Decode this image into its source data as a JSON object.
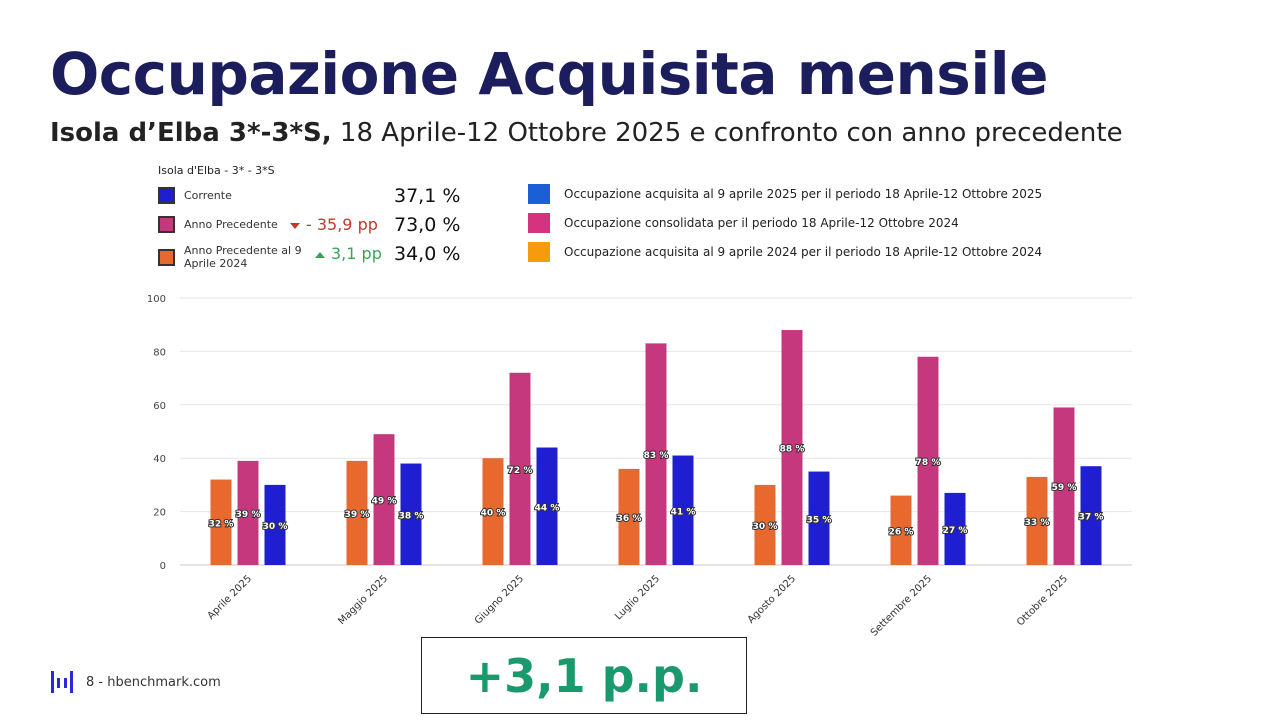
{
  "title": "Occupazione Acquisita mensile",
  "subtitle": {
    "bold": "Isola d’Elba 3*-3*S,",
    "rest": " 18 Aprile-12 Ottobre 2025 e confronto con anno precedente"
  },
  "kpi": {
    "caption": "Isola d'Elba - 3* - 3*S",
    "rows": [
      {
        "label": "Corrente",
        "color": "#1f1fd1",
        "value": "37,1 %",
        "delta": "",
        "trend": ""
      },
      {
        "label": "Anno Precedente",
        "color": "#c5387e",
        "value": "73,0 %",
        "delta": "- 35,9 pp",
        "trend": "down",
        "delta_color": "#c0392b"
      },
      {
        "label": "Anno Precedente al 9 Aprile 2024",
        "color": "#e8692e",
        "value": "34,0 %",
        "delta": "3,1 pp",
        "trend": "up",
        "delta_color": "#3aa35a"
      }
    ]
  },
  "legend": [
    {
      "label": "Occupazione acquisita al 9 aprile 2025 per il periodo 18 Aprile-12 Ottobre 2025",
      "color": "#1a5fd6"
    },
    {
      "label": "Occupazione consolidata per il periodo 18 Aprile-12 Ottobre 2024",
      "color": "#d5327f"
    },
    {
      "label": "Occupazione acquisita al 9 aprile 2024 per il periodo 18 Aprile-12 Ottobre 2024",
      "color": "#f79b0e"
    }
  ],
  "chart_data": {
    "type": "bar",
    "categories": [
      "Aprile 2025",
      "Maggio 2025",
      "Giugno 2025",
      "Luglio 2025",
      "Agosto 2025",
      "Settembre 2025",
      "Ottobre 2025"
    ],
    "series": [
      {
        "key": "prev_at_date",
        "color": "#e8692e",
        "values": [
          32,
          39,
          40,
          36,
          30,
          26,
          33
        ],
        "labels": [
          "32 %",
          "39 %",
          "40 %",
          "36 %",
          "30 %",
          "26 %",
          "33 %"
        ]
      },
      {
        "key": "prev_consolidated",
        "color": "#c5387e",
        "values": [
          39,
          49,
          72,
          83,
          88,
          78,
          59
        ],
        "labels": [
          "39 %",
          "49 %",
          "72 %",
          "83 %",
          "88 %",
          "78 %",
          "59 %"
        ]
      },
      {
        "key": "current",
        "color": "#1f1fd1",
        "values": [
          30,
          38,
          44,
          41,
          35,
          27,
          37
        ],
        "labels": [
          "30 %",
          "38 %",
          "44 %",
          "41 %",
          "35 %",
          "27 %",
          "37 %"
        ]
      }
    ],
    "ylim": [
      0,
      100
    ],
    "yticks": [
      0,
      20,
      40,
      60,
      80,
      100
    ],
    "grid": true
  },
  "footer": {
    "text": "8 - hbenchmark.com",
    "logo": "hbenchmark-logo-icon"
  },
  "highlight": "+3,1 p.p."
}
